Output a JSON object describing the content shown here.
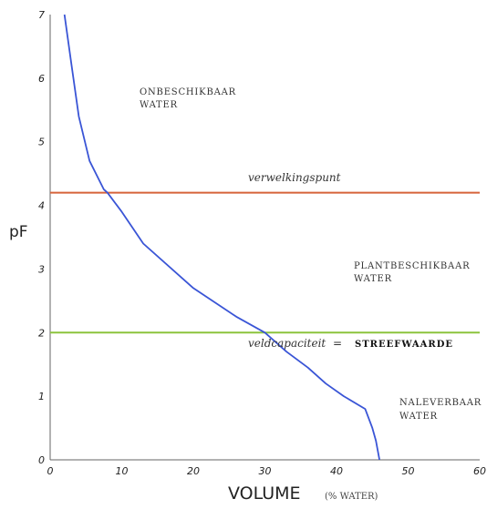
{
  "chart_data": {
    "type": "line",
    "title": "",
    "xlabel": "VOLUME",
    "xlabel_unit": "(% WATER)",
    "ylabel": "pF",
    "xlim": [
      0,
      60
    ],
    "ylim": [
      0,
      7
    ],
    "xticks": [
      "0",
      "10",
      "20",
      "30",
      "40",
      "50",
      "60"
    ],
    "yticks": [
      "0",
      "1",
      "2",
      "3",
      "4",
      "5",
      "6",
      "7"
    ],
    "grid": false,
    "series": [
      {
        "color": "#3a55d6",
        "x": [
          46.0,
          45.5,
          45.0,
          44.0,
          41.0,
          38.5,
          36.0,
          33.0,
          30.0,
          26.0,
          20.0,
          13.0,
          10.0,
          8.0,
          7.5,
          5.5,
          4.0,
          3.0,
          2.0
        ],
        "y": [
          0.0,
          0.3,
          0.5,
          0.8,
          1.0,
          1.2,
          1.45,
          1.7,
          2.0,
          2.25,
          2.7,
          3.4,
          3.9,
          4.2,
          4.25,
          4.7,
          5.4,
          6.2,
          7.0
        ]
      }
    ],
    "reference_lines": [
      {
        "orientation": "horizontal",
        "y": 4.2,
        "color": "#d6633a",
        "label": "verwelkingspunt"
      },
      {
        "orientation": "horizontal",
        "y": 2.0,
        "color": "#8cc43c",
        "label": "veldcapaciteit"
      }
    ],
    "target_text": {
      "equals": "=",
      "value": "STREEFWAARDE"
    },
    "zones": [
      {
        "lines": [
          "ONBESCHIKBAAR",
          "WATER"
        ]
      },
      {
        "lines": [
          "PLANTBESCHIKBAAR",
          "WATER"
        ]
      },
      {
        "lines": [
          "NALEVERBAAR",
          "WATER"
        ]
      }
    ]
  }
}
